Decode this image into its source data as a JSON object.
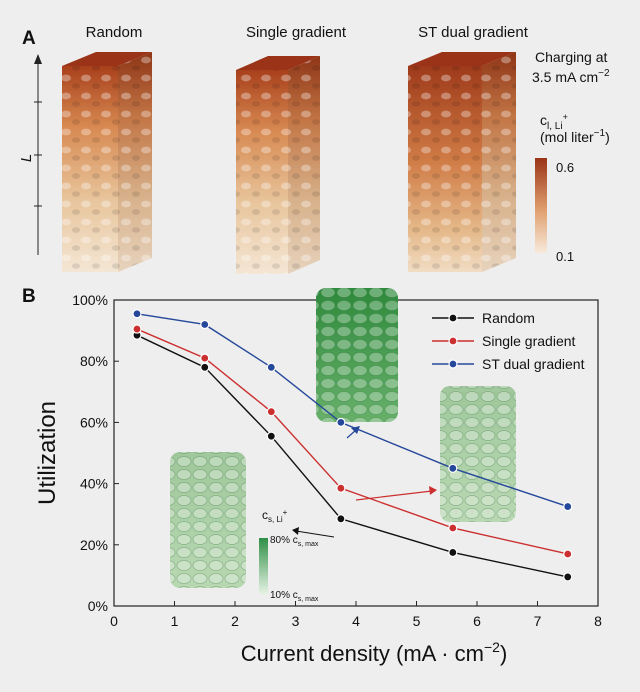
{
  "panel_a": {
    "label": "A",
    "column_titles": [
      "Random",
      "Single gradient",
      "ST dual gradient"
    ],
    "axis_label": "L",
    "condition_line1": "Charging at",
    "condition_line2_value": "3.5 mA cm",
    "condition_line2_exp": "−2",
    "colorbar": {
      "title_main": "c",
      "title_sub": "l, Li",
      "title_sup": "+",
      "unit": "(mol liter",
      "unit_exp": "−1",
      "unit_close": ")",
      "max_label": "0.6",
      "min_label": "0.1",
      "max_value": 0.6,
      "min_value": 0.1,
      "color_high": "#9a3318",
      "color_low": "#f7eadc"
    }
  },
  "panel_b": {
    "label": "B",
    "inset_colorbar": {
      "title_main": "c",
      "title_sub": "s, Li",
      "title_sup": "+",
      "high_label": "80% c",
      "high_sub": "s, max",
      "low_label": "10% c",
      "low_sub": "s, max",
      "color_high": "#2f8f46",
      "color_low": "#e6f3e4"
    }
  },
  "chart_data": {
    "type": "line",
    "xlabel": "Current density (mA · cm",
    "xlabel_exp": "−2",
    "xlabel_close": ")",
    "ylabel": "Utilization",
    "xlim": [
      0,
      8
    ],
    "ylim": [
      0,
      100
    ],
    "x_ticks": [
      0,
      1,
      2,
      3,
      4,
      5,
      6,
      7,
      8
    ],
    "y_ticks": [
      0,
      20,
      40,
      60,
      80,
      100
    ],
    "y_tick_labels": [
      "0%",
      "20%",
      "40%",
      "60%",
      "80%",
      "100%"
    ],
    "x": [
      0.38,
      1.5,
      2.6,
      3.75,
      5.6,
      7.5
    ],
    "legend_position": "top-right",
    "series": [
      {
        "name": "Random",
        "color": "#111111",
        "values": [
          88.5,
          78,
          55.5,
          28.5,
          17.5,
          9.5
        ]
      },
      {
        "name": "Single gradient",
        "color": "#cc2f2f",
        "values": [
          90.5,
          81,
          63.5,
          38.5,
          25.5,
          17
        ]
      },
      {
        "name": "ST dual gradient",
        "color": "#25489a",
        "values": [
          95.5,
          92,
          78,
          60,
          45,
          32.5
        ]
      }
    ]
  }
}
